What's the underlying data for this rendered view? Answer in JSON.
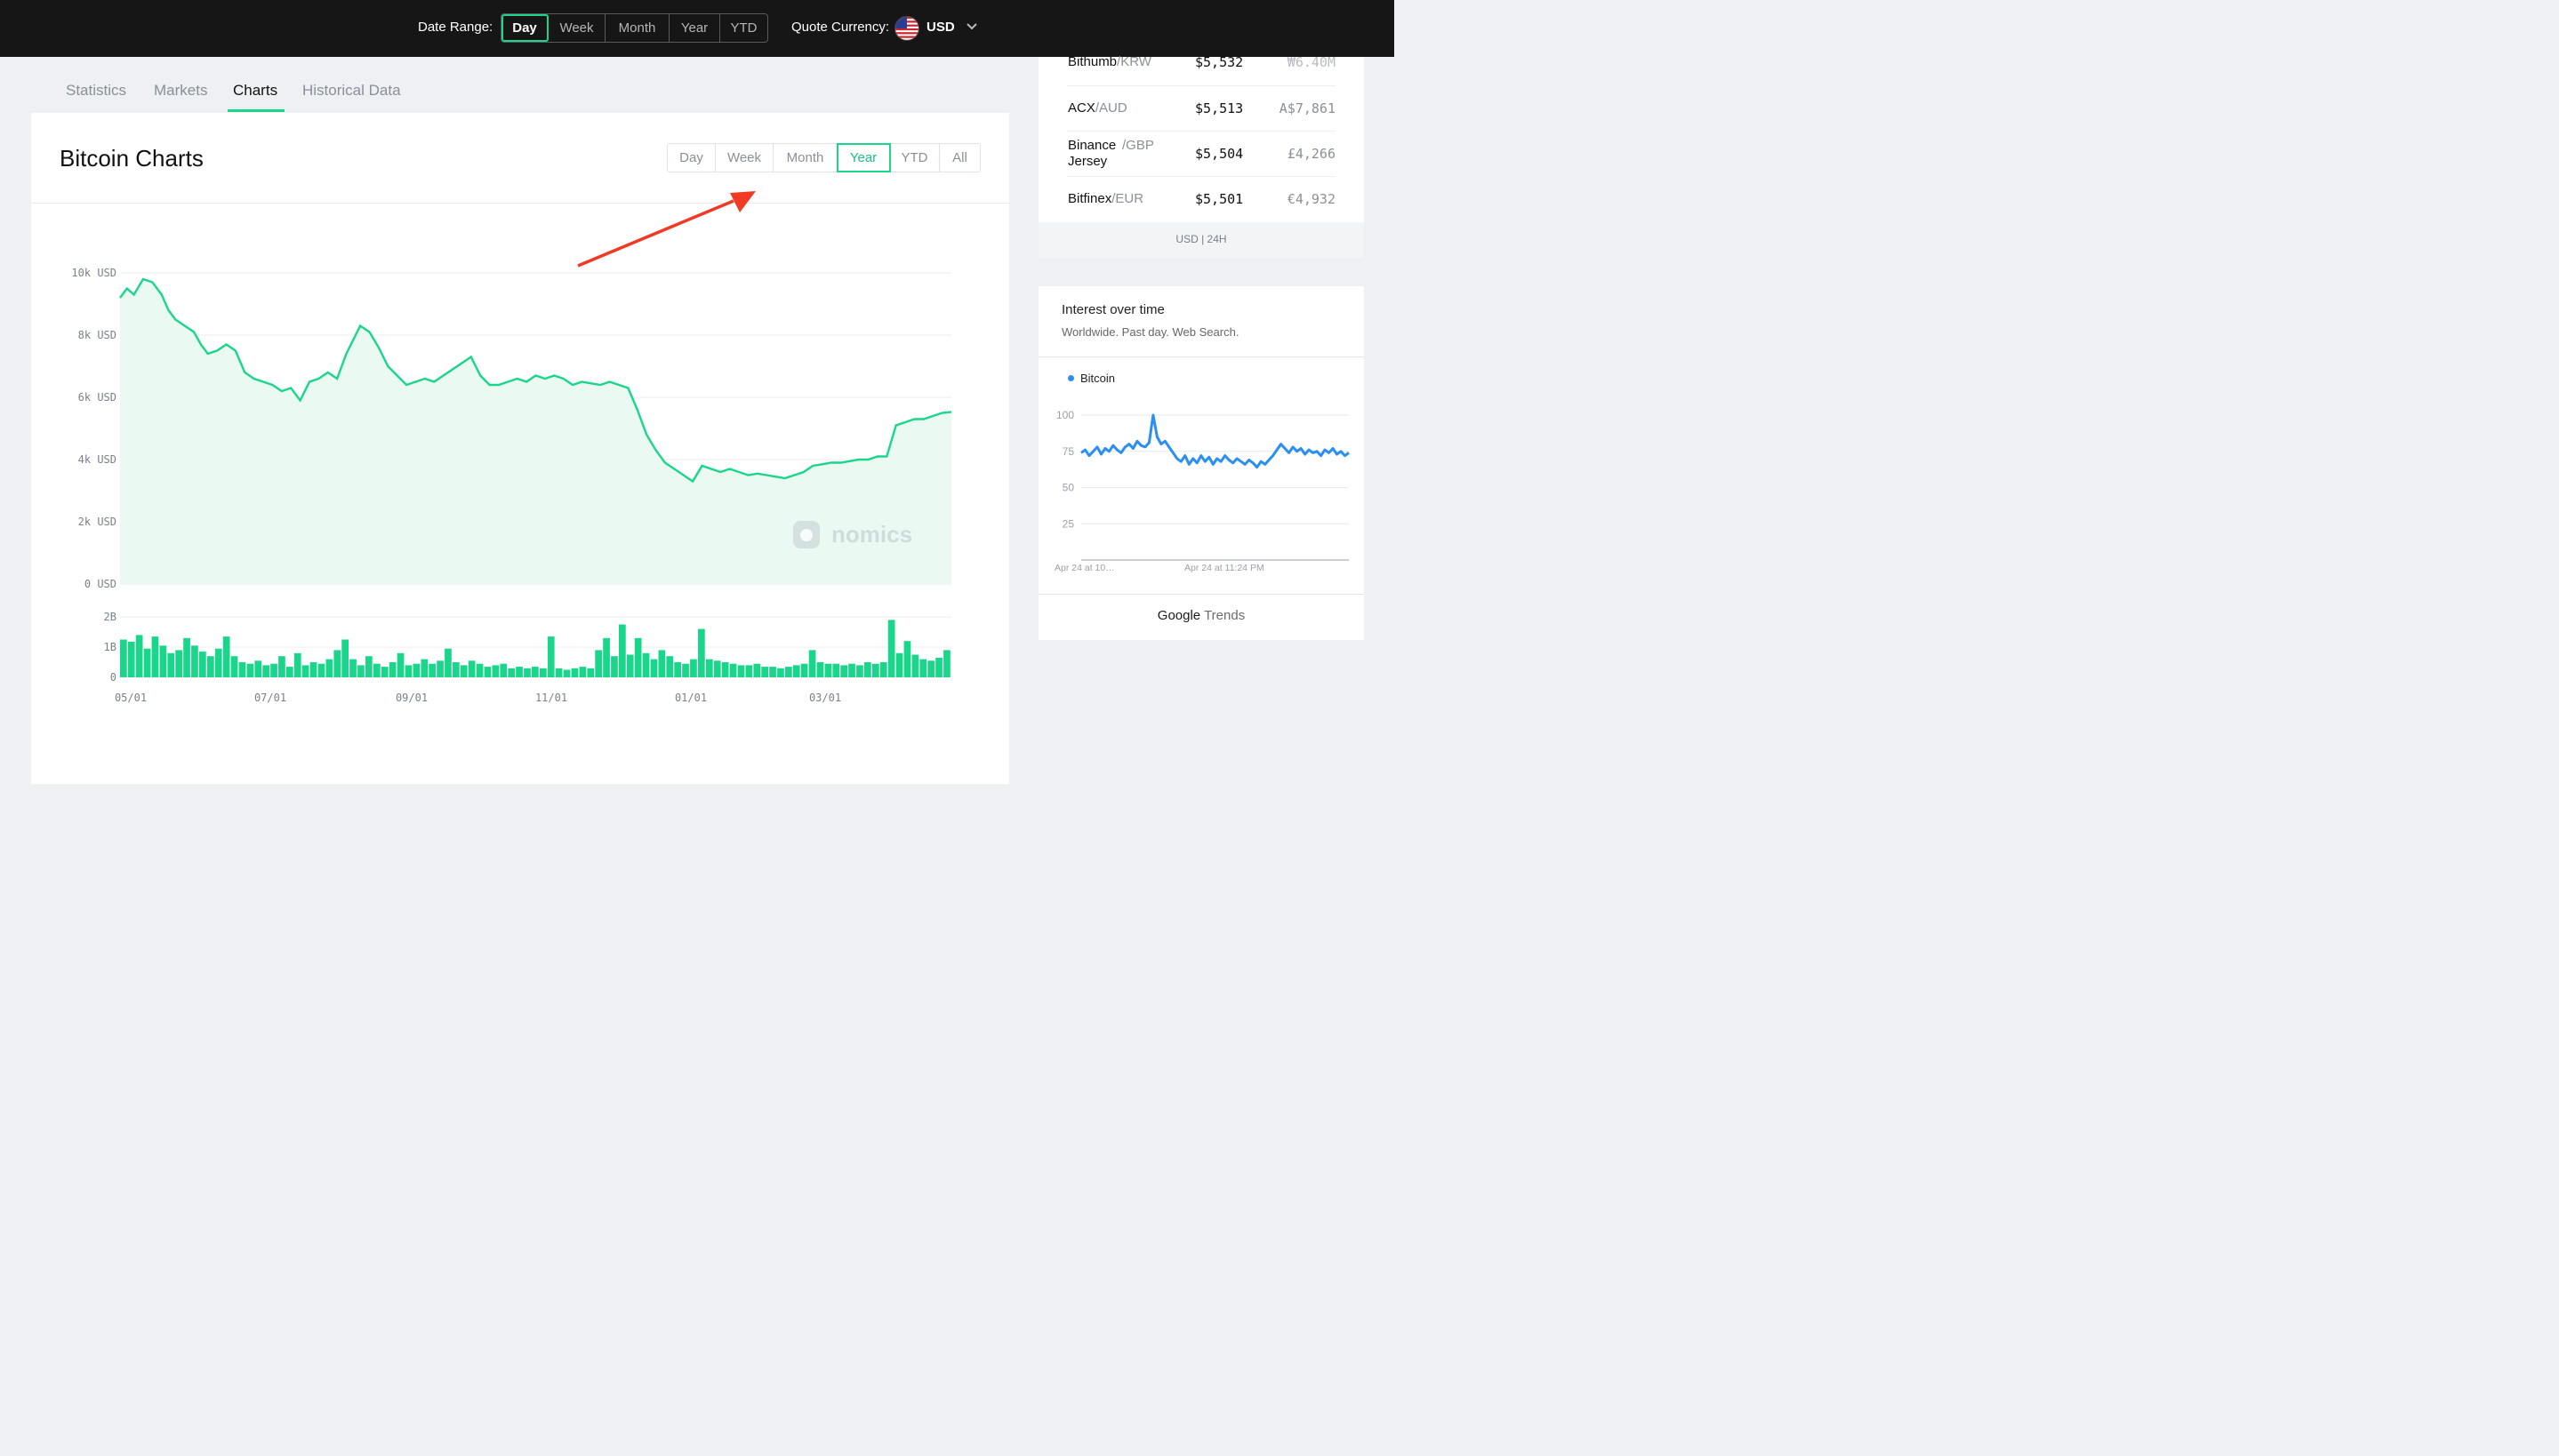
{
  "topbar": {
    "date_range_label": "Date Range:",
    "date_range_options": [
      "Day",
      "Week",
      "Month",
      "Year",
      "YTD"
    ],
    "date_range_selected": "Day",
    "quote_currency_label": "Quote Currency:",
    "currency": "USD",
    "currency_flag_icon": "us-flag-icon",
    "dropdown_icon": "chevron-down-icon"
  },
  "tabs": [
    "Statistics",
    "Markets",
    "Charts",
    "Historical Data"
  ],
  "active_tab": "Charts",
  "chart_panel": {
    "title": "Bitcoin Charts",
    "range_options": [
      "Day",
      "Week",
      "Month",
      "Year",
      "YTD",
      "All"
    ],
    "range_selected": "Year",
    "watermark": "nomics"
  },
  "colors": {
    "accent": "#19d68a",
    "annotation_arrow": "#f03a24",
    "trends_line": "#2a8ff0"
  },
  "chart_data": [
    {
      "type": "area",
      "y_ticks": [
        "10k USD",
        "8k USD",
        "6k USD",
        "4k USD",
        "2k USD",
        "0 USD"
      ],
      "ylim": [
        0,
        10000
      ],
      "x_ticks": [
        "05/01",
        "07/01",
        "09/01",
        "11/01",
        "01/01",
        "03/01"
      ],
      "grid": true,
      "x": [
        0,
        3,
        6,
        10,
        14,
        18,
        21,
        24,
        28,
        32,
        35,
        38,
        42,
        46,
        50,
        54,
        58,
        62,
        66,
        70,
        74,
        78,
        82,
        86,
        90,
        94,
        98,
        100,
        104,
        108,
        112,
        116,
        120,
        124,
        128,
        132,
        136,
        140,
        144,
        148,
        152,
        156,
        160,
        164,
        168,
        172,
        176,
        180,
        184,
        188,
        192,
        196,
        200,
        204,
        208,
        212,
        216,
        220,
        224,
        228,
        232,
        236,
        240,
        244,
        248,
        252,
        256,
        260,
        264,
        268,
        272,
        276,
        280,
        284,
        288,
        292,
        296,
        300,
        304,
        308,
        312,
        316,
        320,
        324,
        328,
        332,
        336,
        340,
        344,
        348,
        352,
        356,
        360
      ],
      "values": [
        9200,
        9500,
        9300,
        9800,
        9700,
        9300,
        8800,
        8500,
        8300,
        8100,
        7700,
        7400,
        7500,
        7700,
        7500,
        6800,
        6600,
        6500,
        6400,
        6200,
        6300,
        5900,
        6500,
        6600,
        6800,
        6600,
        7400,
        7700,
        8300,
        8100,
        7600,
        7000,
        6700,
        6400,
        6500,
        6600,
        6500,
        6700,
        6900,
        7100,
        7300,
        6700,
        6400,
        6400,
        6500,
        6600,
        6500,
        6700,
        6600,
        6700,
        6600,
        6400,
        6500,
        6450,
        6400,
        6500,
        6400,
        6300,
        5600,
        4800,
        4300,
        3900,
        3700,
        3500,
        3300,
        3800,
        3700,
        3600,
        3700,
        3600,
        3500,
        3550,
        3500,
        3450,
        3400,
        3500,
        3600,
        3800,
        3850,
        3900,
        3900,
        3950,
        4000,
        4000,
        4100,
        4100,
        5100,
        5200,
        5300,
        5300,
        5400,
        5500,
        5532
      ],
      "watermark": "nomics"
    },
    {
      "type": "bar",
      "y_ticks": [
        "2B",
        "1B",
        "0"
      ],
      "ylim": [
        0,
        2000000000
      ],
      "values_B": [
        1.25,
        1.18,
        1.4,
        0.95,
        1.35,
        1.05,
        0.8,
        0.9,
        1.3,
        1.05,
        0.85,
        0.7,
        0.95,
        1.35,
        0.7,
        0.5,
        0.45,
        0.55,
        0.4,
        0.45,
        0.7,
        0.35,
        0.8,
        0.4,
        0.5,
        0.45,
        0.6,
        0.9,
        1.25,
        0.6,
        0.4,
        0.7,
        0.45,
        0.35,
        0.5,
        0.8,
        0.4,
        0.45,
        0.6,
        0.45,
        0.55,
        0.95,
        0.5,
        0.4,
        0.55,
        0.45,
        0.35,
        0.4,
        0.45,
        0.3,
        0.35,
        0.3,
        0.35,
        0.3,
        1.35,
        0.3,
        0.25,
        0.3,
        0.35,
        0.3,
        0.9,
        1.3,
        0.7,
        1.75,
        0.75,
        1.3,
        0.8,
        0.6,
        0.9,
        0.7,
        0.5,
        0.45,
        0.6,
        1.6,
        0.6,
        0.55,
        0.5,
        0.45,
        0.4,
        0.4,
        0.45,
        0.35,
        0.35,
        0.3,
        0.35,
        0.4,
        0.45,
        0.9,
        0.5,
        0.45,
        0.45,
        0.4,
        0.45,
        0.4,
        0.5,
        0.45,
        0.5,
        1.9,
        0.8,
        1.2,
        0.75,
        0.6,
        0.55,
        0.65,
        0.9
      ]
    },
    {
      "type": "line",
      "title": "Interest over time",
      "subtitle": "Worldwide. Past day. Web Search.",
      "series_name": "Bitcoin",
      "y_ticks": [
        "100",
        "75",
        "50",
        "25"
      ],
      "ylim": [
        0,
        100
      ],
      "x_ticks": [
        "Apr 24 at 10…",
        "Apr 24 at 11:24 PM"
      ],
      "values": [
        74,
        76,
        72,
        75,
        78,
        73,
        77,
        75,
        79,
        76,
        74,
        78,
        80,
        77,
        82,
        79,
        78,
        81,
        100,
        85,
        80,
        82,
        78,
        74,
        70,
        68,
        72,
        66,
        70,
        67,
        72,
        68,
        71,
        66,
        70,
        68,
        72,
        69,
        67,
        70,
        68,
        66,
        69,
        67,
        64,
        68,
        66,
        69,
        72,
        76,
        80,
        77,
        74,
        78,
        75,
        77,
        73,
        76,
        74,
        75,
        72,
        76,
        74,
        77,
        73,
        75,
        72,
        74
      ]
    }
  ],
  "markets": {
    "rows": [
      {
        "exchange": "Bithumb",
        "pair": "/KRW",
        "price": "$5,532",
        "volume": "₩6.40M"
      },
      {
        "exchange": "ACX",
        "pair": "/AUD",
        "price": "$5,513",
        "volume": "A$7,861"
      },
      {
        "exchange": "Binance Jersey",
        "pair": " /GBP",
        "price": "$5,504",
        "volume": "£4,266"
      },
      {
        "exchange": "Bitfinex",
        "pair": "/EUR",
        "price": "$5,501",
        "volume": "€4,932"
      }
    ],
    "footer": "USD | 24H"
  },
  "trends_widget": {
    "title": "Interest over time",
    "subtitle": "Worldwide. Past day. Web Search.",
    "legend": "Bitcoin",
    "brand_google": "Google",
    "brand_trends": "Trends"
  }
}
